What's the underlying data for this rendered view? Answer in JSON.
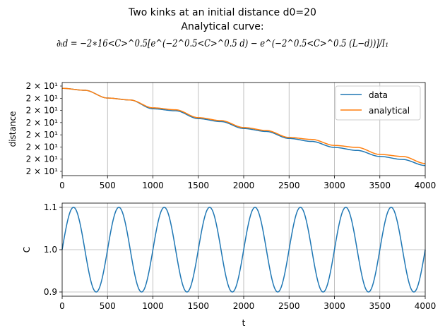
{
  "figure": {
    "title_line1": "Two kinks at an initial distance d0=20",
    "title_line2": "Analytical curve:",
    "title_line3": "∂ₜd = −2∗16<C>^0.5[e^(−2^0.5<C>^0.5 d) − e^(−2^0.5<C>^0.5 (L−d))]/I₁"
  },
  "chart_data": [
    {
      "type": "line",
      "xlabel": "",
      "ylabel": "distance",
      "xlim": [
        0,
        4000
      ],
      "x_ticks": [
        0,
        500,
        1000,
        1500,
        2000,
        2500,
        3000,
        3500,
        4000
      ],
      "y_tick_labels": [
        "2 × 10¹",
        "2 × 10¹",
        "2 × 10¹",
        "2 × 10¹",
        "2 × 10¹",
        "2 × 10¹",
        "2 × 10¹",
        "2 × 10¹"
      ],
      "yscale": "log",
      "grid": "vertical",
      "legend": "upper right",
      "series": [
        {
          "name": "data",
          "color": "#1f77b4",
          "x": [
            0,
            250,
            500,
            750,
            1000,
            1250,
            1500,
            1750,
            2000,
            2250,
            2500,
            2750,
            3000,
            3250,
            3500,
            3750,
            4000
          ],
          "y": [
            20.0,
            19.98,
            19.9,
            19.88,
            19.79,
            19.77,
            19.69,
            19.66,
            19.59,
            19.56,
            19.49,
            19.46,
            19.4,
            19.37,
            19.31,
            19.28,
            19.22
          ]
        },
        {
          "name": "analytical",
          "color": "#ff7f0e",
          "x": [
            0,
            250,
            500,
            750,
            1000,
            1250,
            1500,
            1750,
            2000,
            2250,
            2500,
            2750,
            3000,
            3250,
            3500,
            3750,
            4000
          ],
          "y": [
            20.0,
            19.98,
            19.9,
            19.88,
            19.8,
            19.78,
            19.7,
            19.67,
            19.6,
            19.57,
            19.5,
            19.48,
            19.42,
            19.4,
            19.33,
            19.31,
            19.24
          ]
        }
      ]
    },
    {
      "type": "line",
      "xlabel": "t",
      "ylabel": "C",
      "xlim": [
        0,
        4000
      ],
      "ylim": [
        0.89,
        1.11
      ],
      "x_ticks": [
        0,
        500,
        1000,
        1500,
        2000,
        2500,
        3000,
        3500,
        4000
      ],
      "y_ticks": [
        0.9,
        1.0,
        1.1
      ],
      "grid": "both",
      "series": [
        {
          "name": "",
          "color": "#1f77b4",
          "amplitude": 0.1,
          "mean": 1.0,
          "period": 500
        }
      ]
    }
  ]
}
